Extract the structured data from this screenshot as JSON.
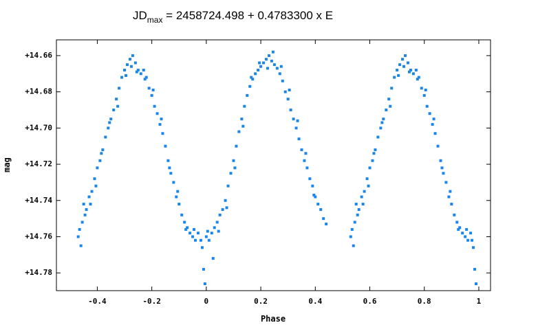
{
  "chart_data": {
    "type": "scatter",
    "title": {
      "main": "JD",
      "subscript": "max",
      "rest": " = 2458724.498 + 0.4783300 x E"
    },
    "xlabel": "Phase",
    "ylabel": "mag",
    "xlim": [
      -0.55,
      1.043
    ],
    "ylim": [
      14.6513,
      14.7898
    ],
    "y_inverted": true,
    "xticks": [
      -0.4,
      -0.2,
      0,
      0.2,
      0.4,
      0.6,
      0.8,
      1
    ],
    "yticks": [
      {
        "value": 14.66,
        "label": "+14.66"
      },
      {
        "value": 14.68,
        "label": "+14.68"
      },
      {
        "value": 14.7,
        "label": "+14.70"
      },
      {
        "value": 14.72,
        "label": "+14.72"
      },
      {
        "value": 14.74,
        "label": "+14.74"
      },
      {
        "value": 14.76,
        "label": "+14.76"
      },
      {
        "value": 14.78,
        "label": "+14.78"
      }
    ],
    "grid": false,
    "series": [
      {
        "color": "#1a86ec",
        "x": [
          -0.47,
          -0.465,
          -0.46,
          -0.455,
          -0.45,
          -0.445,
          -0.44,
          -0.43,
          -0.425,
          -0.42,
          -0.41,
          -0.405,
          -0.4,
          -0.39,
          -0.385,
          -0.38,
          -0.37,
          -0.36,
          -0.355,
          -0.35,
          -0.34,
          -0.33,
          -0.325,
          -0.32,
          -0.31,
          -0.3,
          -0.295,
          -0.29,
          -0.28,
          -0.275,
          -0.27,
          -0.26,
          -0.255,
          -0.25,
          -0.24,
          -0.23,
          -0.225,
          -0.22,
          -0.21,
          -0.2,
          -0.195,
          -0.19,
          -0.18,
          -0.17,
          -0.165,
          -0.16,
          -0.15,
          -0.14,
          -0.135,
          -0.13,
          -0.12,
          -0.11,
          -0.105,
          -0.1,
          -0.09,
          -0.08,
          -0.075,
          -0.07,
          -0.06,
          -0.05,
          -0.045,
          -0.04,
          -0.03,
          -0.02,
          -0.015,
          -0.01,
          -0.005,
          0,
          0.005,
          0.01,
          0.02,
          0.025,
          0.03,
          0.04,
          0.045,
          0.05,
          0.06,
          0.07,
          0.075,
          0.08,
          0.09,
          0.1,
          0.105,
          0.11,
          0.12,
          0.13,
          0.135,
          0.14,
          0.15,
          0.16,
          0.165,
          0.17,
          0.18,
          0.19,
          0.195,
          0.2,
          0.21,
          0.22,
          0.225,
          0.23,
          0.24,
          0.245,
          0.25,
          0.26,
          0.27,
          0.275,
          0.28,
          0.29,
          0.3,
          0.305,
          0.31,
          0.32,
          0.33,
          0.335,
          0.34,
          0.35,
          0.36,
          0.365,
          0.37,
          0.38,
          0.39,
          0.395,
          0.4,
          0.41,
          0.42,
          0.43,
          0.44,
          0.53,
          0.535,
          0.54,
          0.545,
          0.55,
          0.555,
          0.56,
          0.57,
          0.575,
          0.58,
          0.59,
          0.595,
          0.6,
          0.61,
          0.615,
          0.62,
          0.63,
          0.64,
          0.645,
          0.65,
          0.66,
          0.67,
          0.675,
          0.68,
          0.69,
          0.7,
          0.705,
          0.71,
          0.72,
          0.725,
          0.73,
          0.74,
          0.745,
          0.75,
          0.76,
          0.77,
          0.775,
          0.78,
          0.79,
          0.8,
          0.805,
          0.81,
          0.82,
          0.83,
          0.835,
          0.84,
          0.85,
          0.86,
          0.865,
          0.87,
          0.88,
          0.89,
          0.895,
          0.9,
          0.91,
          0.92,
          0.925,
          0.93,
          0.94,
          0.95,
          0.955,
          0.96,
          0.97,
          0.975,
          0.98,
          0.985,
          0.99
        ],
        "values": [
          14.76,
          14.756,
          14.765,
          14.752,
          14.742,
          14.748,
          14.745,
          14.738,
          14.742,
          14.735,
          14.728,
          14.732,
          14.722,
          14.718,
          14.714,
          14.712,
          14.705,
          14.7,
          14.697,
          14.695,
          14.69,
          14.684,
          14.688,
          14.678,
          14.672,
          14.668,
          14.671,
          14.665,
          14.662,
          14.666,
          14.66,
          14.664,
          14.669,
          14.668,
          14.67,
          14.668,
          14.673,
          14.672,
          14.678,
          14.682,
          14.679,
          14.688,
          14.692,
          14.698,
          14.695,
          14.703,
          14.71,
          14.718,
          14.722,
          14.725,
          14.73,
          14.738,
          14.735,
          14.742,
          14.748,
          14.752,
          14.756,
          14.755,
          14.758,
          14.76,
          14.756,
          14.762,
          14.758,
          14.762,
          14.766,
          14.778,
          14.786,
          14.76,
          14.757,
          14.762,
          14.758,
          14.772,
          14.755,
          14.752,
          14.757,
          14.748,
          14.745,
          14.74,
          14.744,
          14.732,
          14.725,
          14.718,
          14.722,
          14.71,
          14.702,
          14.695,
          14.699,
          14.688,
          14.682,
          14.677,
          14.672,
          14.673,
          14.67,
          14.668,
          14.664,
          14.666,
          14.664,
          14.662,
          14.667,
          14.66,
          14.663,
          14.658,
          14.665,
          14.667,
          14.67,
          14.666,
          14.674,
          14.68,
          14.684,
          14.679,
          14.69,
          14.695,
          14.7,
          14.696,
          14.706,
          14.712,
          14.718,
          14.714,
          14.722,
          14.728,
          14.732,
          14.737,
          14.738,
          14.742,
          14.745,
          14.75,
          14.753,
          14.76,
          14.756,
          14.765,
          14.752,
          14.742,
          14.748,
          14.745,
          14.738,
          14.742,
          14.735,
          14.728,
          14.732,
          14.722,
          14.718,
          14.714,
          14.712,
          14.705,
          14.7,
          14.697,
          14.695,
          14.69,
          14.684,
          14.688,
          14.678,
          14.672,
          14.668,
          14.671,
          14.665,
          14.662,
          14.666,
          14.66,
          14.664,
          14.669,
          14.668,
          14.67,
          14.668,
          14.673,
          14.672,
          14.678,
          14.682,
          14.679,
          14.688,
          14.692,
          14.698,
          14.695,
          14.703,
          14.71,
          14.718,
          14.722,
          14.725,
          14.73,
          14.738,
          14.735,
          14.742,
          14.748,
          14.752,
          14.756,
          14.755,
          14.758,
          14.76,
          14.756,
          14.762,
          14.758,
          14.762,
          14.766,
          14.778,
          14.786
        ]
      }
    ]
  }
}
